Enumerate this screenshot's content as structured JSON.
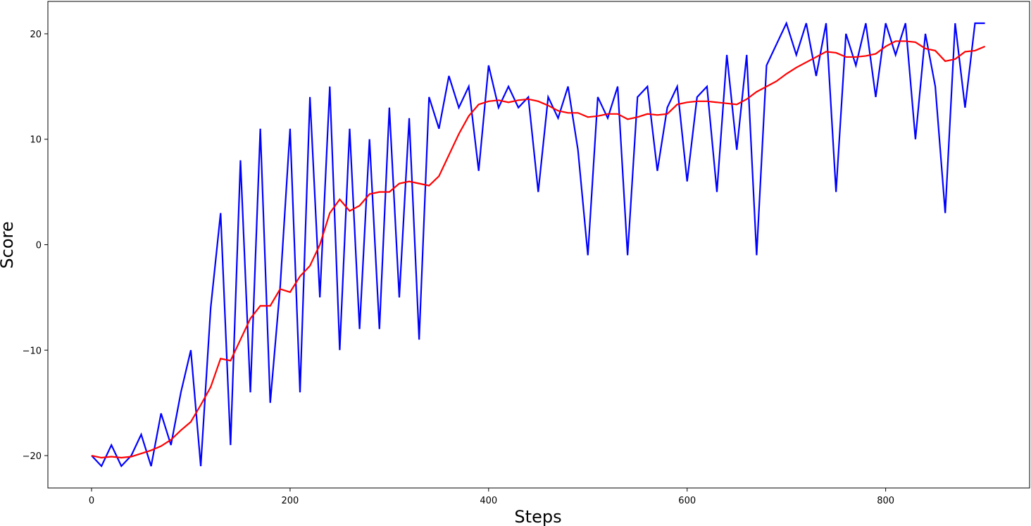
{
  "chart_data": {
    "type": "line",
    "x_label": "Steps",
    "y_label": "Score",
    "x": [
      0,
      10,
      20,
      30,
      40,
      50,
      60,
      70,
      80,
      90,
      100,
      110,
      120,
      130,
      140,
      150,
      160,
      170,
      180,
      190,
      200,
      210,
      220,
      230,
      240,
      250,
      260,
      270,
      280,
      290,
      300,
      310,
      320,
      330,
      340,
      350,
      360,
      370,
      380,
      390,
      400,
      410,
      420,
      430,
      440,
      450,
      460,
      470,
      480,
      490,
      500,
      510,
      520,
      530,
      540,
      550,
      560,
      570,
      580,
      590,
      600,
      610,
      620,
      630,
      640,
      650,
      660,
      670,
      680,
      690,
      700,
      710,
      720,
      730,
      740,
      750,
      760,
      770,
      780,
      790,
      800,
      810,
      820,
      830,
      840,
      850,
      860,
      870,
      880,
      890,
      900
    ],
    "series": [
      {
        "color": "#0000ff",
        "values": [
          -20,
          -21,
          -19,
          -21,
          -20,
          -18,
          -21,
          -16,
          -19,
          -14,
          -10,
          -21,
          -6,
          3,
          -19,
          8,
          -14,
          11,
          -15,
          -4,
          11,
          -14,
          14,
          -5,
          15,
          -10,
          11,
          -8,
          10,
          -8,
          13,
          -5,
          12,
          -9,
          14,
          11,
          16,
          13,
          15,
          7,
          17,
          13,
          15,
          13,
          14,
          5,
          14,
          12,
          15,
          9,
          -1,
          14,
          12,
          15,
          -1,
          14,
          15,
          7,
          13,
          15,
          6,
          14,
          15,
          5,
          18,
          9,
          18,
          -1,
          17,
          19,
          21,
          18,
          21,
          16,
          21,
          5,
          20,
          17,
          21,
          14,
          21,
          18,
          21,
          10,
          20,
          15,
          3,
          21,
          13,
          21,
          21
        ]
      },
      {
        "color": "#ff0000",
        "values": [
          -20,
          -20.2,
          -20.1,
          -20.2,
          -20.1,
          -19.8,
          -19.5,
          -19.1,
          -18.5,
          -17.6,
          -16.8,
          -15.2,
          -13.5,
          -10.8,
          -11,
          -9,
          -7,
          -5.8,
          -5.8,
          -4.2,
          -4.5,
          -3,
          -2,
          0,
          3,
          4.3,
          3.2,
          3.7,
          4.8,
          5,
          5,
          5.8,
          6,
          5.8,
          5.6,
          6.5,
          8.5,
          10.5,
          12.2,
          13.3,
          13.6,
          13.7,
          13.5,
          13.7,
          13.8,
          13.6,
          13.2,
          12.7,
          12.5,
          12.5,
          12.1,
          12.2,
          12.4,
          12.4,
          11.9,
          12.1,
          12.4,
          12.3,
          12.4,
          13.3,
          13.5,
          13.6,
          13.6,
          13.5,
          13.4,
          13.3,
          13.8,
          14.5,
          15,
          15.5,
          16.2,
          16.8,
          17.3,
          17.8,
          18.3,
          18.2,
          17.8,
          17.8,
          17.9,
          18.1,
          18.8,
          19.3,
          19.3,
          19.2,
          18.6,
          18.4,
          17.4,
          17.6,
          18.3,
          18.4,
          18.8
        ]
      }
    ],
    "xlim": [
      -44,
      945
    ],
    "ylim": [
      -23.07,
      23.07
    ],
    "xticks": [
      0,
      200,
      400,
      600,
      800
    ],
    "yticks": [
      {
        "value": -20,
        "label": "−20"
      },
      {
        "value": -10,
        "label": "−10"
      },
      0,
      10,
      20
    ]
  }
}
